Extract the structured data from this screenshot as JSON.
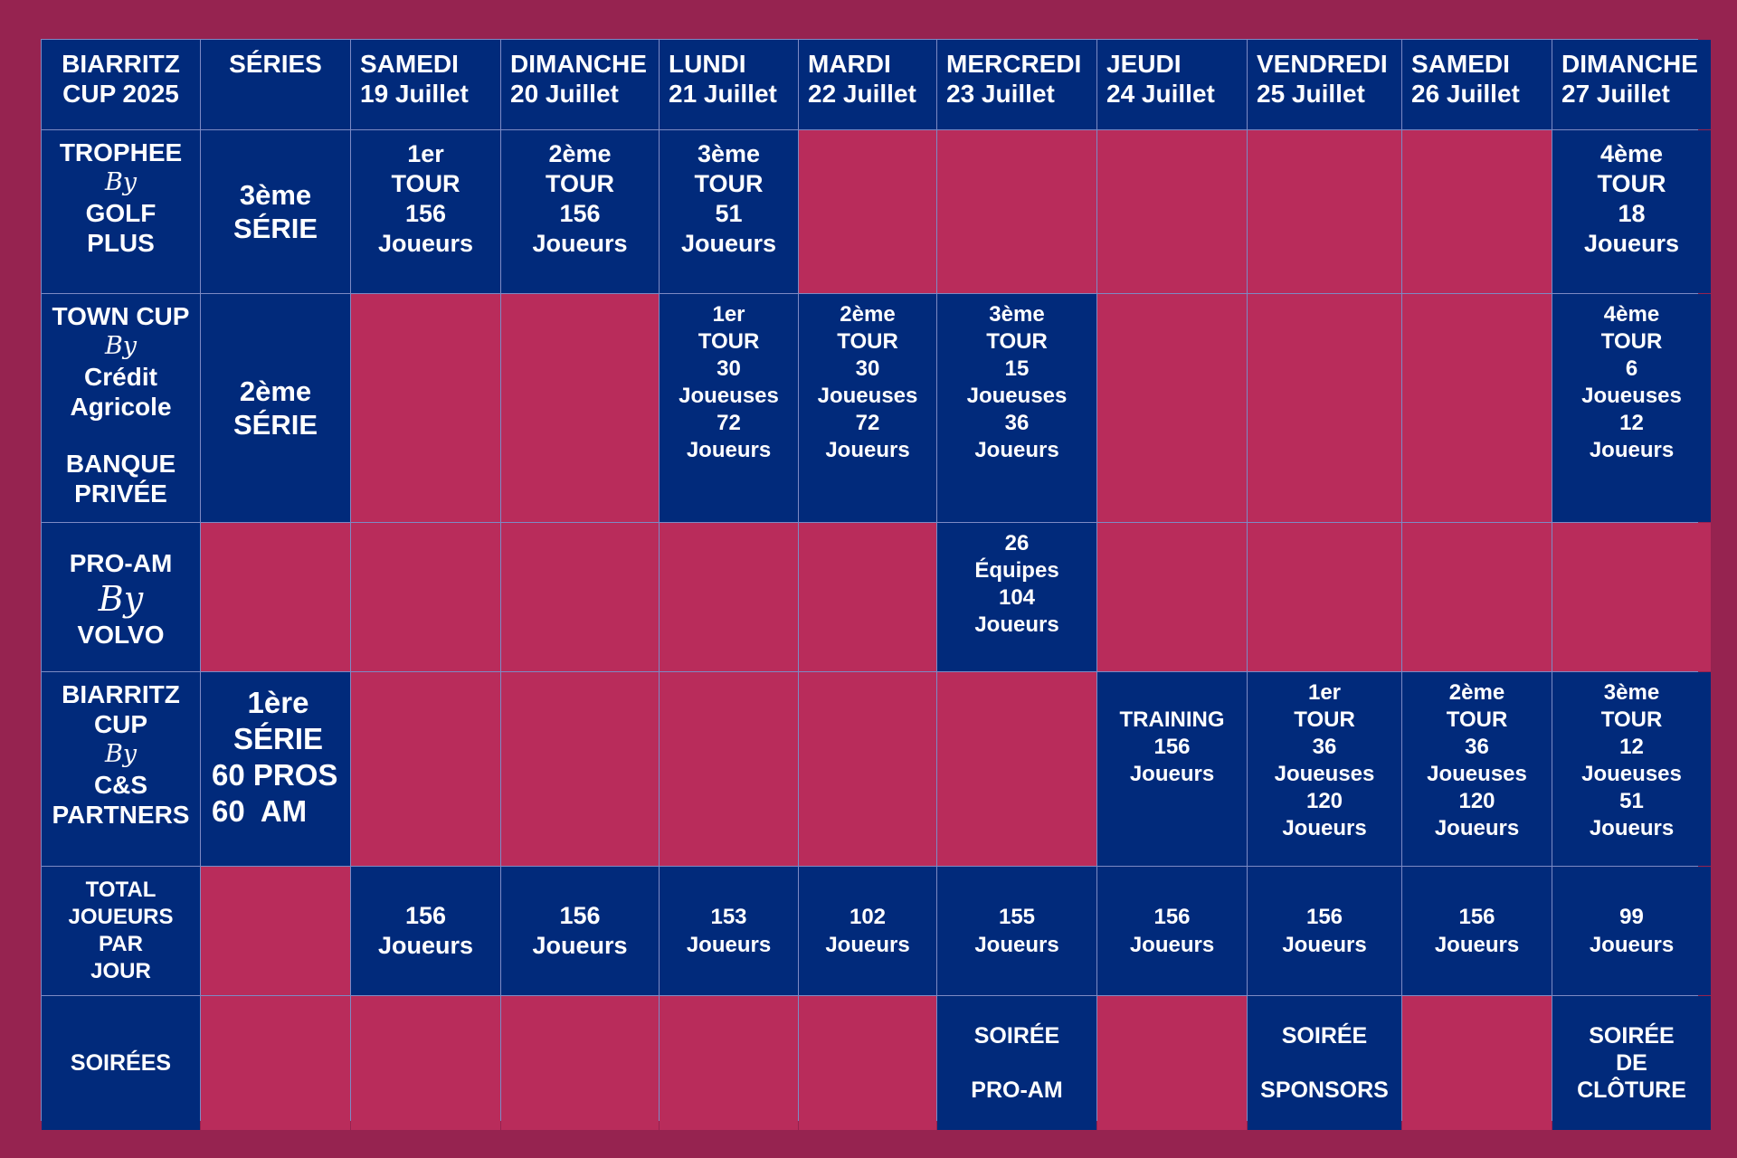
{
  "header": {
    "corner": [
      "BIARRITZ",
      "CUP 2025"
    ],
    "series": "SÉRIES",
    "days": [
      {
        "day": "SAMEDI",
        "date": "19 Juillet"
      },
      {
        "day": "DIMANCHE",
        "date": "20 Juillet"
      },
      {
        "day": "LUNDI",
        "date": "21 Juillet"
      },
      {
        "day": "MARDI",
        "date": "22 Juillet"
      },
      {
        "day": "MERCREDI",
        "date": "23 Juillet"
      },
      {
        "day": "JEUDI",
        "date": "24 Juillet"
      },
      {
        "day": "VENDREDI",
        "date": "25 Juillet"
      },
      {
        "day": "SAMEDI",
        "date": "26 Juillet"
      },
      {
        "day": "DIMANCHE",
        "date": "27 Juillet"
      }
    ]
  },
  "by_label": "By",
  "rows": {
    "trophee": {
      "name_top": [
        "TROPHEE"
      ],
      "name_bottom": [
        "GOLF",
        "PLUS"
      ],
      "serie": [
        "3ème",
        "SÉRIE"
      ],
      "cells": {
        "d1": [
          "1er",
          "TOUR",
          "156",
          "Joueurs"
        ],
        "d2": [
          "2ème",
          "TOUR",
          "156",
          "Joueurs"
        ],
        "d3": [
          "3ème",
          "TOUR",
          "51",
          "Joueurs"
        ],
        "d9": [
          "4ème",
          "TOUR",
          "18",
          "Joueurs"
        ]
      }
    },
    "town": {
      "name_top": [
        "TOWN CUP"
      ],
      "name_bottom": [
        "Crédit",
        "Agricole"
      ],
      "name_extra": [
        "BANQUE",
        "PRIVÉE"
      ],
      "serie": [
        "2ème",
        "SÉRIE"
      ],
      "cells": {
        "d3": [
          "1er",
          "TOUR",
          "30",
          "Joueuses",
          "72",
          "Joueurs"
        ],
        "d4": [
          "2ème",
          "TOUR",
          "30",
          "Joueuses",
          "72",
          "Joueurs"
        ],
        "d5": [
          "3ème",
          "TOUR",
          "15",
          "Joueuses",
          "36",
          "Joueurs"
        ],
        "d9": [
          "4ème",
          "TOUR",
          "6",
          "Joueuses",
          "12",
          "Joueurs"
        ]
      }
    },
    "proam": {
      "name_top": [
        "PRO-AM"
      ],
      "name_bottom": [
        "VOLVO"
      ],
      "cells": {
        "d5": [
          "26",
          "Équipes",
          "104",
          "Joueurs"
        ]
      }
    },
    "biarritz": {
      "name_top": [
        "BIARRITZ",
        "CUP"
      ],
      "name_bottom": [
        "C&S",
        "PARTNERS"
      ],
      "serie": [
        "1ère",
        "SÉRIE",
        "60 PROS",
        "60  AM"
      ],
      "cells": {
        "d6": [
          "TRAINING",
          "156",
          "Joueurs"
        ],
        "d7": [
          "1er",
          "TOUR",
          "36",
          "Joueuses",
          "120",
          "Joueurs"
        ],
        "d8": [
          "2ème",
          "TOUR",
          "36",
          "Joueuses",
          "120",
          "Joueurs"
        ],
        "d9": [
          "3ème",
          "TOUR",
          "12",
          "Joueuses",
          "51",
          "Joueurs"
        ]
      }
    },
    "total": {
      "label": [
        "TOTAL",
        "JOUEURS",
        "PAR",
        "JOUR"
      ],
      "values": [
        [
          "156",
          "Joueurs"
        ],
        [
          "156",
          "Joueurs"
        ],
        [
          "153",
          "Joueurs"
        ],
        [
          "102",
          "Joueurs"
        ],
        [
          "155",
          "Joueurs"
        ],
        [
          "156",
          "Joueurs"
        ],
        [
          "156",
          "Joueurs"
        ],
        [
          "156",
          "Joueurs"
        ],
        [
          "99",
          "Joueurs"
        ]
      ]
    },
    "soirees": {
      "label": "SOIRÉES",
      "d5": [
        "SOIRÉE",
        "PRO-AM"
      ],
      "d7": [
        "SOIRÉE",
        "SPONSORS"
      ],
      "d9": [
        "SOIRÉE",
        "DE",
        "CLÔTURE"
      ]
    }
  },
  "colors": {
    "page_background": "#962350",
    "filled_cell": "#012a7b",
    "empty_cell": "#b92c5b",
    "grid_line": "#7d8ac4",
    "text": "#ffffff"
  }
}
